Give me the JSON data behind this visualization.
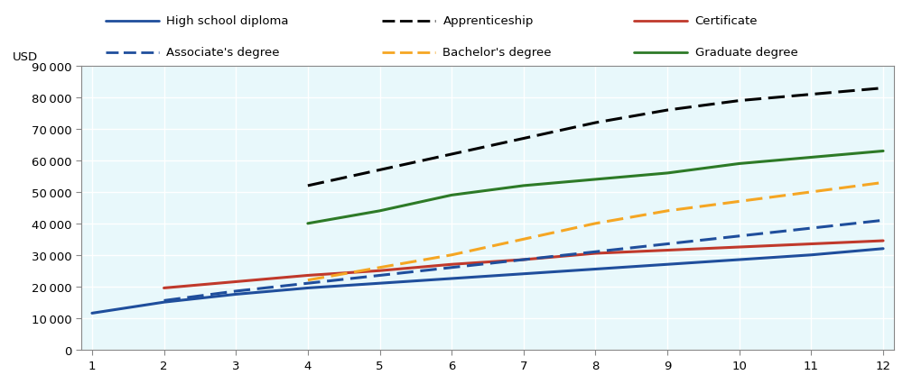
{
  "x": [
    1,
    2,
    3,
    4,
    5,
    6,
    7,
    8,
    9,
    10,
    11,
    12
  ],
  "series": {
    "High school diploma": {
      "color": "#1f4e9c",
      "linestyle": "solid",
      "linewidth": 2.2,
      "values": [
        11500,
        15000,
        17500,
        19500,
        21000,
        22500,
        24000,
        25500,
        27000,
        28500,
        30000,
        32000
      ]
    },
    "Apprenticeship": {
      "color": "#000000",
      "linestyle": "dashed",
      "linewidth": 2.2,
      "values": [
        null,
        null,
        null,
        52000,
        57000,
        62000,
        67000,
        72000,
        76000,
        79000,
        81000,
        83000
      ]
    },
    "Certificate": {
      "color": "#c0392b",
      "linestyle": "solid",
      "linewidth": 2.2,
      "values": [
        null,
        19500,
        21500,
        23500,
        25000,
        27000,
        28500,
        30500,
        31500,
        32500,
        33500,
        34500
      ]
    },
    "Associate's degree": {
      "color": "#1f4e9c",
      "linestyle": "dashed",
      "linewidth": 2.2,
      "values": [
        null,
        15500,
        18500,
        21000,
        23500,
        26000,
        28500,
        31000,
        33500,
        36000,
        38500,
        41000
      ]
    },
    "Bachelor's degree": {
      "color": "#f5a623",
      "linestyle": "dashed",
      "linewidth": 2.2,
      "values": [
        null,
        null,
        null,
        22000,
        26000,
        30000,
        35000,
        40000,
        44000,
        47000,
        50000,
        53000
      ]
    },
    "Graduate degree": {
      "color": "#2d7a27",
      "linestyle": "solid",
      "linewidth": 2.2,
      "values": [
        null,
        null,
        null,
        40000,
        44000,
        49000,
        52000,
        54000,
        56000,
        59000,
        61000,
        63000
      ]
    }
  },
  "ylim": [
    0,
    90000
  ],
  "xlim": [
    1,
    12
  ],
  "yticks": [
    0,
    10000,
    20000,
    30000,
    40000,
    50000,
    60000,
    70000,
    80000,
    90000
  ],
  "xticks": [
    1,
    2,
    3,
    4,
    5,
    6,
    7,
    8,
    9,
    10,
    11,
    12
  ],
  "bg_color": "#e8f8fb",
  "legend_bg": "#d9d9d9",
  "grid_color": "#ffffff",
  "ylabel": "USD",
  "legend_col_order": [
    [
      "High school diploma",
      "Apprenticeship",
      "Certificate"
    ],
    [
      "Associate's degree",
      "Bachelor's degree",
      "Graduate degree"
    ]
  ]
}
